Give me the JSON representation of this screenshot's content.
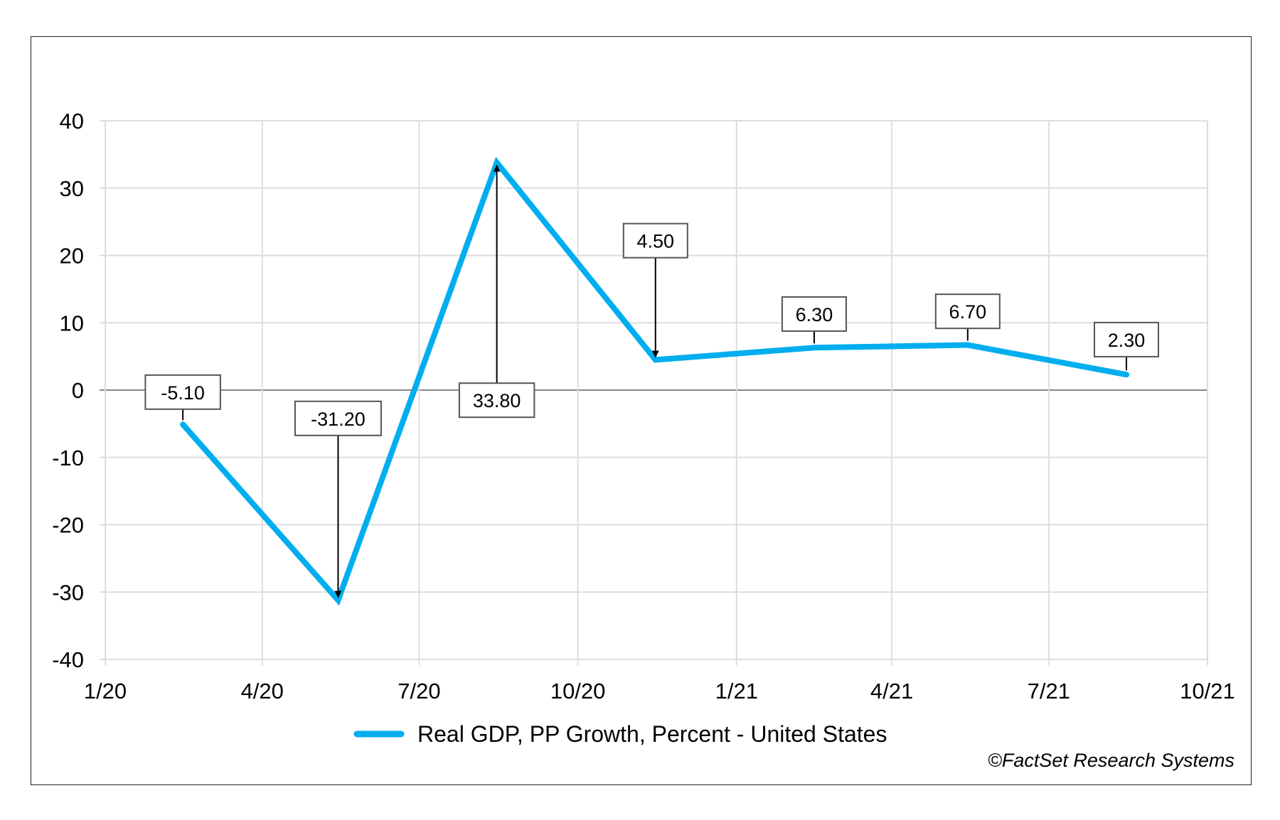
{
  "chart_data": {
    "type": "line",
    "title": "",
    "xlabel": "",
    "ylabel": "",
    "ylim": [
      -40,
      40
    ],
    "yticks": [
      "40",
      "30",
      "20",
      "10",
      "0",
      "-10",
      "-20",
      "-30",
      "-40"
    ],
    "xlim": [
      "2020-01-01",
      "2021-10-01"
    ],
    "xticks": [
      "1/20",
      "4/20",
      "7/20",
      "10/20",
      "1/21",
      "4/21",
      "7/21",
      "10/21"
    ],
    "grid": true,
    "legend_position": "bottom",
    "series": [
      {
        "name": "Real GDP, PP Growth, Percent - United States",
        "color": "#00AEEF",
        "x": [
          "2020-02-15",
          "2020-05-15",
          "2020-08-15",
          "2020-11-15",
          "2021-02-15",
          "2021-05-15",
          "2021-08-15"
        ],
        "values": [
          -5.1,
          -31.2,
          33.8,
          4.5,
          6.3,
          6.7,
          2.3
        ],
        "labels": [
          "-5.10",
          "-31.20",
          "33.80",
          "4.50",
          "6.30",
          "6.70",
          "2.30"
        ]
      }
    ],
    "credit": "©FactSet Research Systems"
  },
  "colors": {
    "series": "#00AEEF",
    "grid": "#dddddd",
    "zero_line": "#888888",
    "frame": "#222222"
  }
}
